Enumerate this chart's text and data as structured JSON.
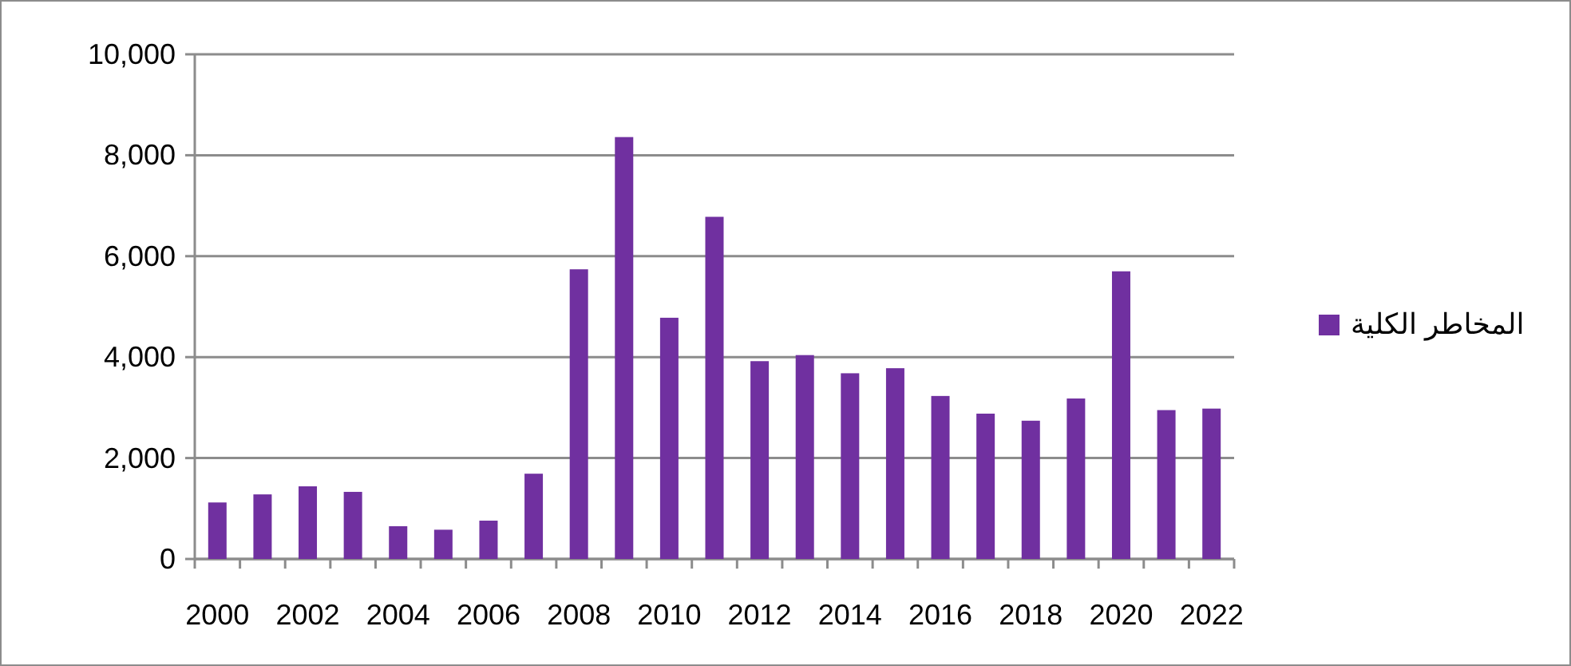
{
  "chart_data": {
    "type": "bar",
    "categories": [
      "2000",
      null,
      "2002",
      null,
      "2004",
      null,
      "2006",
      null,
      "2008",
      null,
      "2010",
      null,
      "2012",
      null,
      "2014",
      null,
      "2016",
      null,
      "2018",
      null,
      "2020",
      null,
      "2022"
    ],
    "series": [
      {
        "name": "المخاطر الكلية",
        "color": "#7030a0",
        "values": [
          1120,
          1280,
          1440,
          1330,
          650,
          580,
          760,
          1690,
          5740,
          8360,
          4780,
          6780,
          3920,
          4040,
          3680,
          3780,
          3230,
          2880,
          2740,
          3180,
          5700,
          2950,
          2980
        ]
      }
    ],
    "ylim": [
      0,
      10000
    ],
    "yticks": [
      0,
      {
        "value": 2000,
        "label": "2,000"
      },
      {
        "value": 4000,
        "label": "4,000"
      },
      {
        "value": 6000,
        "label": "6,000"
      },
      {
        "value": 8000,
        "label": "8,000"
      },
      {
        "value": 10000,
        "label": "10,000"
      }
    ],
    "grid": "y",
    "legend": "right"
  }
}
